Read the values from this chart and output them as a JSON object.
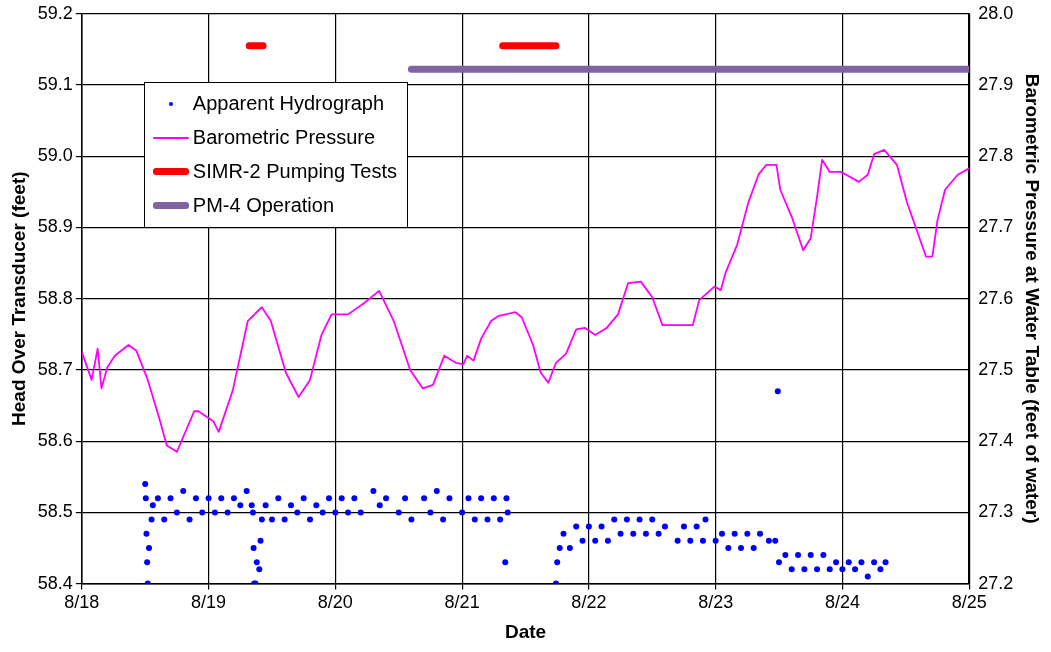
{
  "chart_data": {
    "type": "scatter",
    "xlabel": "Date",
    "ylabel": "Head Over Transducer (feet)",
    "y2label": "Barometric Pressure at Water Table (feet of water)",
    "xlim": [
      "--08-18",
      "--08-25"
    ],
    "xticks": [
      {
        "value": "--08-18",
        "label": "8/18"
      },
      {
        "value": "--08-19",
        "label": "8/19"
      },
      {
        "value": "--08-20",
        "label": "8/20"
      },
      {
        "value": "--08-21",
        "label": "8/21"
      },
      {
        "value": "--08-22",
        "label": "8/22"
      },
      {
        "value": "--08-23",
        "label": "8/23"
      },
      {
        "value": "--08-24",
        "label": "8/24"
      },
      {
        "value": "--08-25",
        "label": "8/25"
      }
    ],
    "ylim": [
      58.4,
      59.2
    ],
    "yticks": [
      58.4,
      58.5,
      58.6,
      58.7,
      58.8,
      58.9,
      {
        "value": 59,
        "label": "59.0"
      },
      59.1,
      59.2
    ],
    "y2lim": [
      27.2,
      28.0
    ],
    "y2ticks": [
      27.2,
      27.3,
      27.4,
      27.5,
      27.6,
      27.7,
      27.8,
      27.9,
      {
        "value": 28,
        "label": "28.0"
      }
    ],
    "grid": true,
    "legend": "top left",
    "series": [
      {
        "name": "Apparent Hydrograph",
        "color": "#0000ff",
        "marker": "circle",
        "x": [
          "--08-18T12:00",
          "--08-18T12:07",
          "--08-18T12:14",
          "--08-18T12:22",
          "--08-18T12:29",
          "--08-18T12:43",
          "--08-18T13:12",
          "--08-18T13:26",
          "--08-18T14:24",
          "--08-18T15:36",
          "--08-18T16:48",
          "--08-18T18:00",
          "--08-18T19:12",
          "--08-18T20:24",
          "--08-18T21:36",
          "--08-18T22:48",
          "--08-19T00:00",
          "--08-19T01:12",
          "--08-19T02:24",
          "--08-19T03:36",
          "--08-19T04:48",
          "--08-19T06:00",
          "--08-19T07:12",
          "--08-19T08:10",
          "--08-19T08:24",
          "--08-19T08:31",
          "--08-19T08:38",
          "--08-19T08:53",
          "--08-19T09:07",
          "--08-19T09:36",
          "--08-19T09:50",
          "--08-19T10:05",
          "--08-19T10:48",
          "--08-19T12:00",
          "--08-19T13:12",
          "--08-19T14:24",
          "--08-19T15:36",
          "--08-19T16:48",
          "--08-19T18:00",
          "--08-19T19:12",
          "--08-19T20:24",
          "--08-19T21:36",
          "--08-19T22:48",
          "--08-20T00:00",
          "--08-20T01:12",
          "--08-20T02:24",
          "--08-20T03:36",
          "--08-20T04:48",
          "--08-20T07:12",
          "--08-20T08:24",
          "--08-20T09:36",
          "--08-20T12:00",
          "--08-20T13:12",
          "--08-20T14:24",
          "--08-20T16:48",
          "--08-20T18:00",
          "--08-20T19:12",
          "--08-20T20:24",
          "--08-20T21:36",
          "--08-21T00:00",
          "--08-21T01:12",
          "--08-21T02:24",
          "--08-21T03:36",
          "--08-21T04:48",
          "--08-21T06:00",
          "--08-21T07:12",
          "--08-21T08:10",
          "--08-21T08:24",
          "--08-21T08:38",
          "--08-21T17:46",
          "--08-21T18:00",
          "--08-21T18:29",
          "--08-21T19:12",
          "--08-21T20:24",
          "--08-21T21:36",
          "--08-21T22:48",
          "--08-22T00:00",
          "--08-22T01:12",
          "--08-22T02:24",
          "--08-22T03:36",
          "--08-22T04:48",
          "--08-22T06:00",
          "--08-22T07:12",
          "--08-22T08:24",
          "--08-22T09:36",
          "--08-22T10:48",
          "--08-22T12:00",
          "--08-22T13:12",
          "--08-22T14:24",
          "--08-22T16:48",
          "--08-22T18:00",
          "--08-22T19:12",
          "--08-22T20:24",
          "--08-22T21:36",
          "--08-22T22:05",
          "--08-23T00:00",
          "--08-23T01:12",
          "--08-23T02:24",
          "--08-23T03:36",
          "--08-23T04:48",
          "--08-23T06:00",
          "--08-23T07:12",
          "--08-23T08:24",
          "--08-23T10:05",
          "--08-23T11:17",
          "--08-23T11:46",
          "--08-23T12:00",
          "--08-23T13:12",
          "--08-23T14:24",
          "--08-23T15:36",
          "--08-23T16:48",
          "--08-23T18:00",
          "--08-23T19:12",
          "--08-23T20:24",
          "--08-23T21:36",
          "--08-23T22:48",
          "--08-24T00:00",
          "--08-24T01:12",
          "--08-24T02:24",
          "--08-24T03:36",
          "--08-24T04:48",
          "--08-24T06:00",
          "--08-24T07:12",
          "--08-24T08:10"
        ],
        "values": [
          58.54,
          58.52,
          58.47,
          58.43,
          58.4,
          58.45,
          58.49,
          58.51,
          58.52,
          58.49,
          58.52,
          58.5,
          58.53,
          58.49,
          58.52,
          58.5,
          58.52,
          58.5,
          58.52,
          58.5,
          58.52,
          58.51,
          58.53,
          58.51,
          58.5,
          58.45,
          58.4,
          58.4,
          58.43,
          58.42,
          58.46,
          58.49,
          58.51,
          58.49,
          58.52,
          58.49,
          58.51,
          58.5,
          58.52,
          58.49,
          58.51,
          58.5,
          58.52,
          58.5,
          58.52,
          58.5,
          58.52,
          58.5,
          58.53,
          58.51,
          58.52,
          58.5,
          58.52,
          58.49,
          58.52,
          58.5,
          58.53,
          58.49,
          58.52,
          58.5,
          58.52,
          58.49,
          58.52,
          58.49,
          58.52,
          58.49,
          58.43,
          58.52,
          58.5,
          58.4,
          58.43,
          58.45,
          58.47,
          58.45,
          58.48,
          58.46,
          58.48,
          58.46,
          58.48,
          58.46,
          58.49,
          58.47,
          58.49,
          58.47,
          58.49,
          58.47,
          58.49,
          58.47,
          58.48,
          58.46,
          58.48,
          58.46,
          58.48,
          58.46,
          58.49,
          58.46,
          58.47,
          58.45,
          58.47,
          58.45,
          58.47,
          58.45,
          58.47,
          58.46,
          58.46,
          58.67,
          58.43,
          58.44,
          58.42,
          58.44,
          58.42,
          58.44,
          58.42,
          58.44,
          58.42,
          58.43,
          58.42,
          58.43,
          58.42,
          58.43,
          58.41,
          58.43,
          58.42,
          58.43
        ]
      },
      {
        "name": "Barometric Pressure",
        "type": "line",
        "axis": "y2",
        "color": "#ff00ff",
        "x": [
          "--08-18T00:00",
          "--08-18T01:51",
          "--08-18T03:00",
          "--08-18T03:43",
          "--08-18T04:48",
          "--08-18T06:14",
          "--08-18T08:50",
          "--08-18T10:19",
          "--08-18T12:29",
          "--08-18T14:38",
          "--08-18T16:05",
          "--08-18T18:00",
          "--08-18T21:16",
          "--08-18T22:05",
          "--08-19T00:53",
          "--08-19T01:55",
          "--08-19T04:34",
          "--08-19T07:26",
          "--08-19T10:05",
          "--08-19T11:46",
          "--08-19T14:38",
          "--08-19T17:02",
          "--08-19T19:12",
          "--08-19T21:22",
          "--08-19T23:17",
          "--08-20T02:24",
          "--08-20T05:17",
          "--08-20T08:17",
          "--08-20T11:02",
          "--08-20T14:10",
          "--08-20T16:34",
          "--08-20T18:29",
          "--08-20T20:38",
          "--08-20T22:48",
          "--08-21T00:14",
          "--08-21T00:58",
          "--08-21T02:10",
          "--08-21T03:36",
          "--08-21T05:31",
          "--08-21T06:58",
          "--08-21T10:05",
          "--08-21T11:17",
          "--08-21T13:26",
          "--08-21T14:53",
          "--08-21T16:19",
          "--08-21T17:46",
          "--08-21T19:41",
          "--08-21T21:36",
          "--08-21T23:17",
          "--08-22T01:12",
          "--08-22T03:22",
          "--08-22T05:31",
          "--08-22T07:26",
          "--08-22T09:50",
          "--08-22T12:00",
          "--08-22T13:55",
          "--08-22T19:41",
          "--08-22T20:53",
          "--08-22T23:46",
          "--08-23T00:58",
          "--08-23T01:55",
          "--08-23T04:05",
          "--08-23T06:14",
          "--08-23T08:10",
          "--08-23T09:36",
          "--08-23T11:31",
          "--08-23T12:14",
          "--08-23T14:24",
          "--08-23T16:34",
          "--08-23T18:00",
          "--08-23T19:12",
          "--08-23T20:10",
          "--08-23T21:36",
          "--08-23T23:46",
          "--08-24T03:07",
          "--08-24T04:48",
          "--08-24T06:00",
          "--08-24T07:55",
          "--08-24T10:19",
          "--08-24T12:14",
          "--08-24T15:50",
          "--08-24T17:02",
          "--08-24T18:00",
          "--08-24T19:26",
          "--08-24T21:50",
          "--08-25T00:00"
        ],
        "values": [
          27.525,
          27.486,
          27.53,
          27.474,
          27.503,
          27.52,
          27.535,
          27.527,
          27.486,
          27.433,
          27.394,
          27.385,
          27.442,
          27.442,
          27.428,
          27.413,
          27.471,
          27.569,
          27.588,
          27.569,
          27.496,
          27.462,
          27.486,
          27.549,
          27.578,
          27.578,
          27.593,
          27.611,
          27.569,
          27.5,
          27.474,
          27.479,
          27.52,
          27.51,
          27.508,
          27.52,
          27.513,
          27.544,
          27.569,
          27.576,
          27.581,
          27.574,
          27.535,
          27.496,
          27.482,
          27.51,
          27.523,
          27.557,
          27.559,
          27.549,
          27.559,
          27.578,
          27.622,
          27.624,
          27.602,
          27.563,
          27.563,
          27.598,
          27.617,
          27.612,
          27.637,
          27.676,
          27.736,
          27.775,
          27.788,
          27.788,
          27.753,
          27.715,
          27.668,
          27.685,
          27.743,
          27.795,
          27.778,
          27.778,
          27.764,
          27.774,
          27.803,
          27.809,
          27.788,
          27.735,
          27.659,
          27.659,
          27.71,
          27.753,
          27.774,
          27.783
        ]
      },
      {
        "name": "SIMR-2 Pumping Tests",
        "type": "line",
        "color": "#ff0000",
        "x": [
          "--08-19T07:41",
          "--08-19T10:19",
          "--08-20T00:00",
          "--08-21T07:41",
          "--08-21T17:46"
        ],
        "values": [
          59.155,
          59.155,
          null,
          59.155,
          59.155
        ]
      },
      {
        "name": "PM-4 Operation",
        "type": "line",
        "color": "#8064a2",
        "x": [
          "--08-20T14:24",
          "--08-25T00:00"
        ],
        "values": [
          59.122,
          59.122
        ]
      }
    ]
  }
}
